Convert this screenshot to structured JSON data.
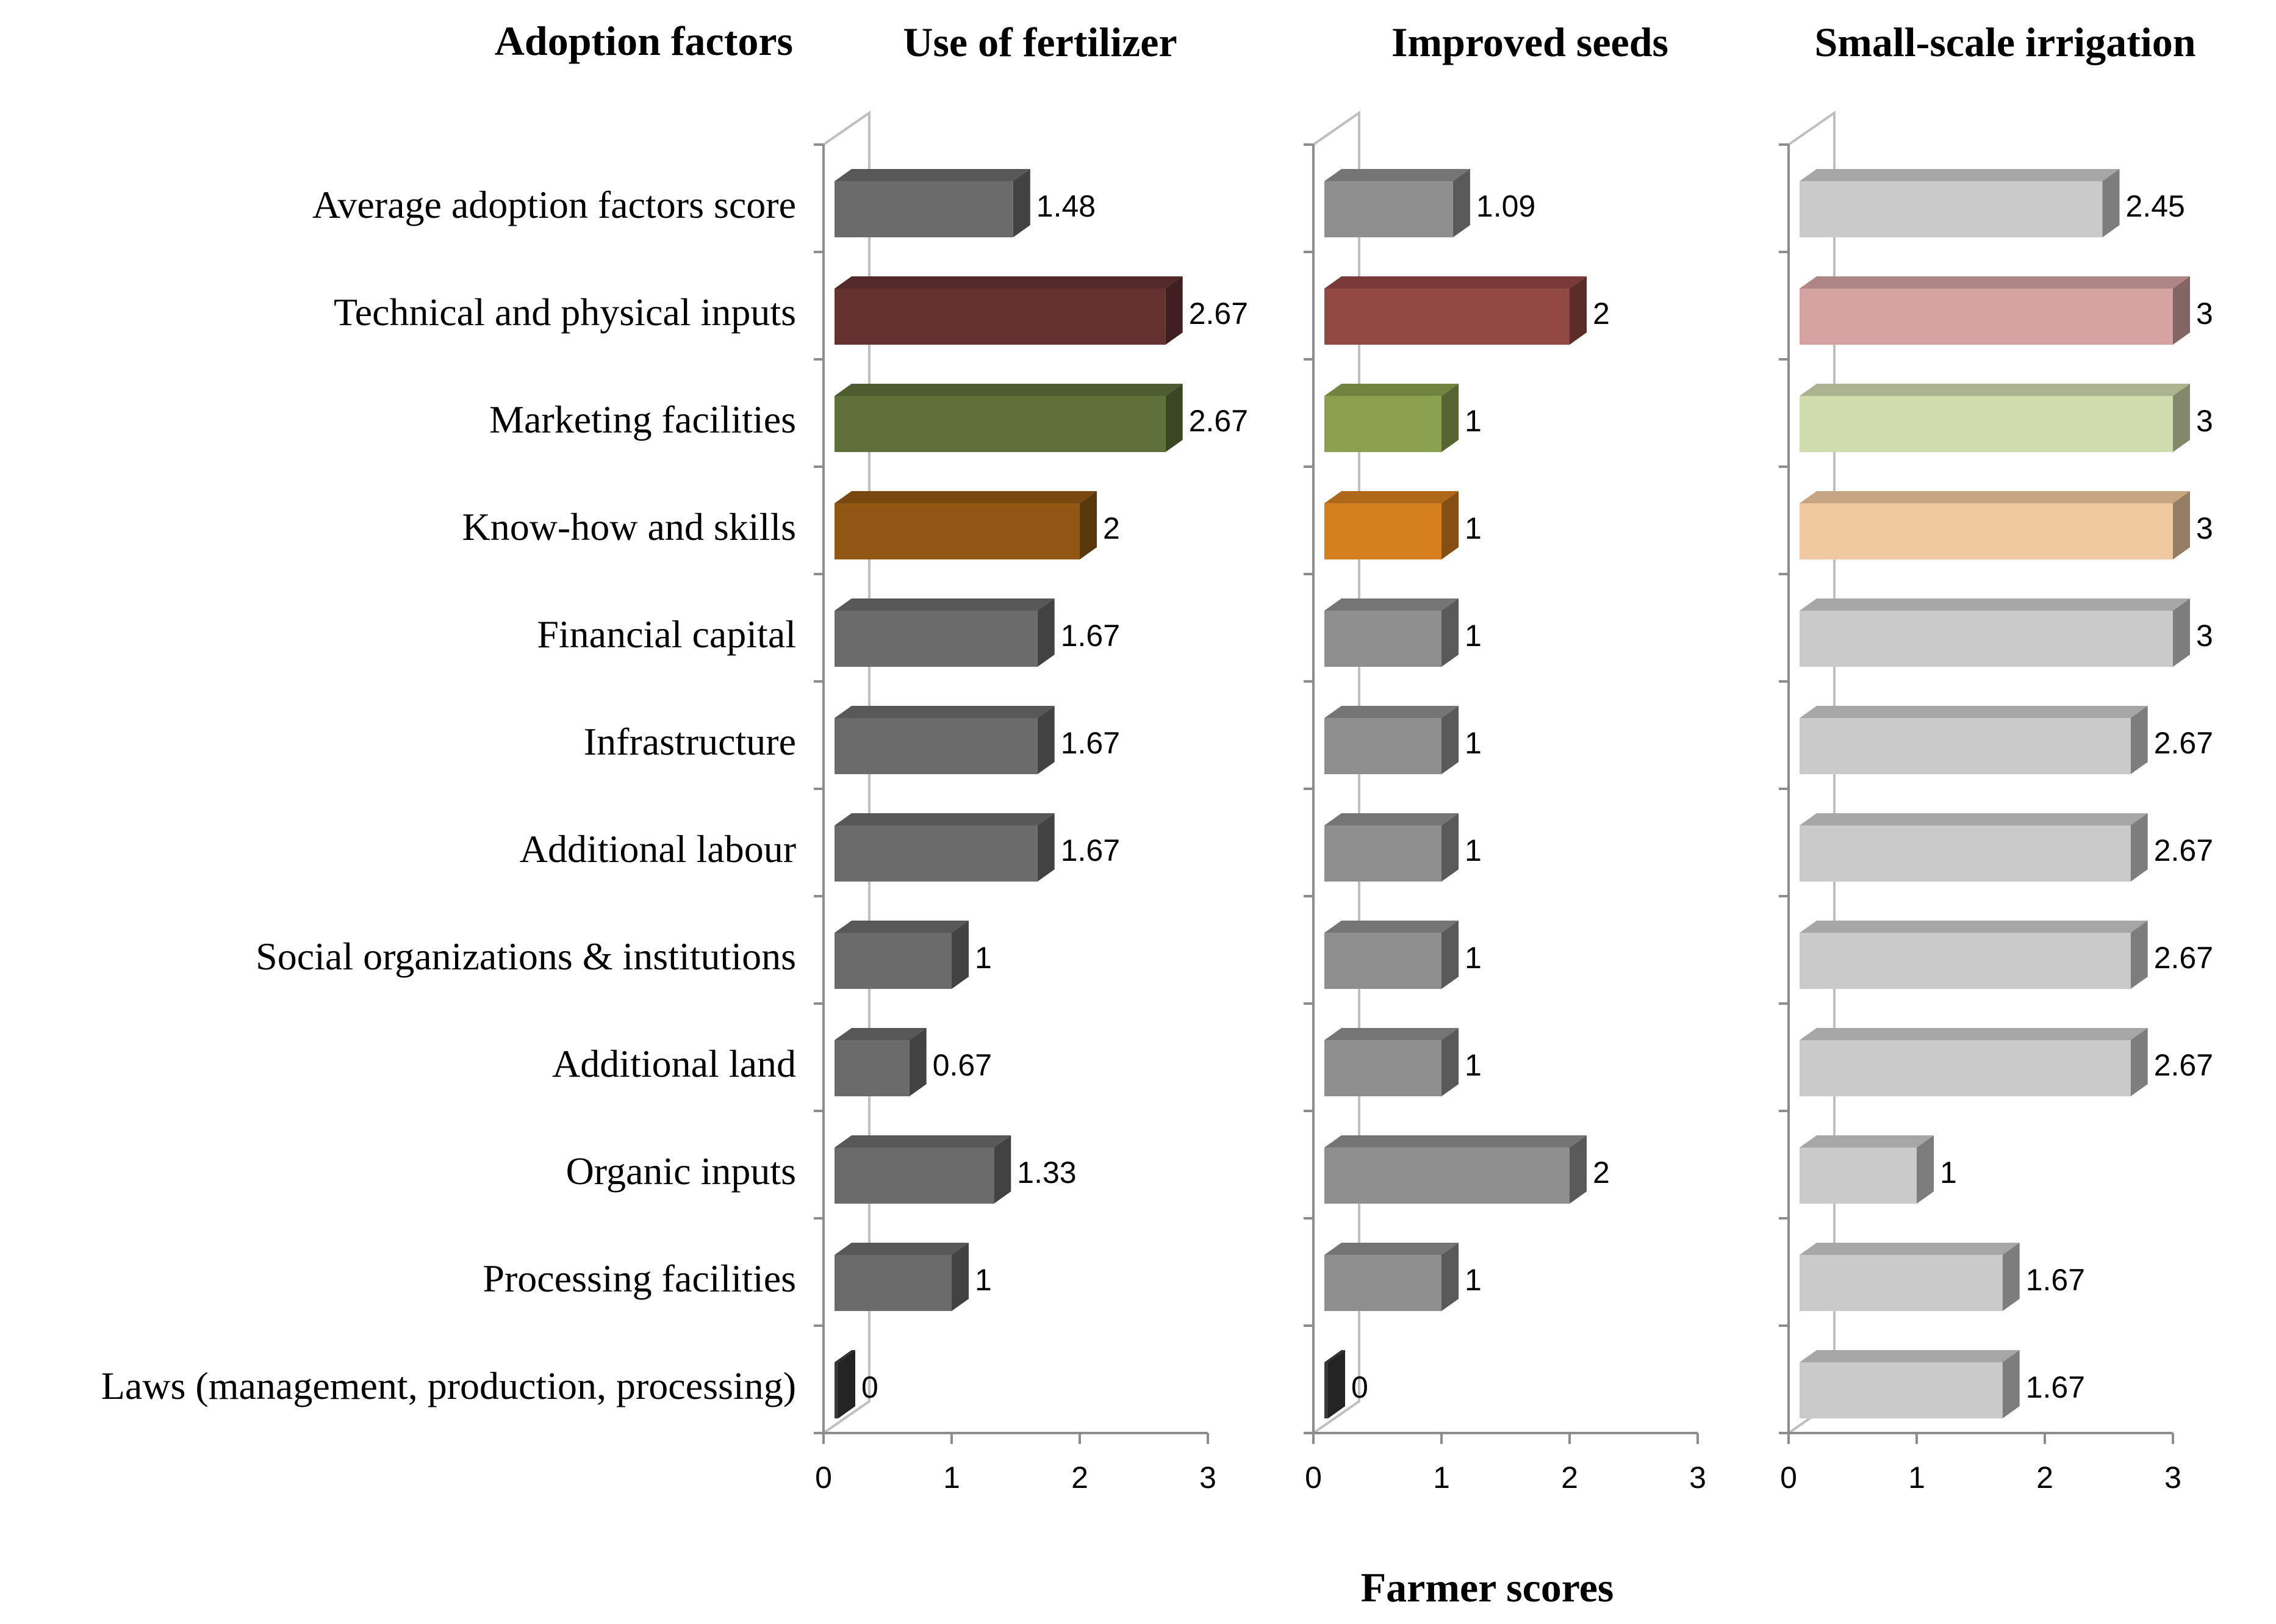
{
  "chart_data": {
    "type": "bar",
    "orientation": "horizontal",
    "style": "3d",
    "row_header": "Adoption factors",
    "xlabel": "Farmer scores",
    "xlim": [
      0,
      3
    ],
    "xticks": [
      0,
      1,
      2,
      3
    ],
    "grid": false,
    "legend": "none",
    "categories": [
      "Average adoption factors score",
      "Technical and physical inputs",
      "Marketing facilities",
      "Know-how and skills",
      "Financial capital",
      "Infrastructure",
      "Additional labour",
      "Social organizations & institutions",
      "Additional land",
      "Organic inputs",
      "Processing facilities",
      "Laws (management, production, processing)"
    ],
    "series": [
      {
        "name": "Use of fertilizer",
        "values": [
          1.48,
          2.67,
          2.67,
          2,
          1.67,
          1.67,
          1.67,
          1,
          0.67,
          1.33,
          1,
          0
        ],
        "labels": [
          "1.48",
          "2.67",
          "2.67",
          "2",
          "1.67",
          "1.67",
          "1.67",
          "1",
          "0.67",
          "1.33",
          "1",
          "0"
        ],
        "colors": [
          "#6b6b6b",
          "#653232",
          "#5f713a",
          "#925813",
          "#6b6b6b",
          "#6b6b6b",
          "#6b6b6b",
          "#6b6b6b",
          "#6b6b6b",
          "#6b6b6b",
          "#6b6b6b",
          "#3a3a3a"
        ]
      },
      {
        "name": "Improved seeds",
        "values": [
          1.09,
          2,
          1,
          1,
          1,
          1,
          1,
          1,
          1,
          2,
          1,
          0
        ],
        "labels": [
          "1.09",
          "2",
          "1",
          "1",
          "1",
          "1",
          "1",
          "1",
          "1",
          "2",
          "1",
          "0"
        ],
        "colors": [
          "#8f8f8f",
          "#924843",
          "#8aa24f",
          "#d57f1f",
          "#8f8f8f",
          "#8f8f8f",
          "#8f8f8f",
          "#8f8f8f",
          "#8f8f8f",
          "#8f8f8f",
          "#8f8f8f",
          "#3a3a3a"
        ]
      },
      {
        "name": "Small-scale irrigation",
        "values": [
          2.45,
          3,
          3,
          3,
          3,
          2.67,
          2.67,
          2.67,
          2.67,
          1,
          1.67,
          1.67
        ],
        "labels": [
          "2.45",
          "3",
          "3",
          "3",
          "3",
          "2.67",
          "2.67",
          "2.67",
          "2.67",
          "1",
          "1.67",
          "1.67"
        ],
        "colors": [
          "#cacaca",
          "#d4a3a1",
          "#d0dcae",
          "#f1c9a0",
          "#cacaca",
          "#cacaca",
          "#cacaca",
          "#cacaca",
          "#cacaca",
          "#cacaca",
          "#cacaca",
          "#cacaca"
        ]
      }
    ]
  }
}
